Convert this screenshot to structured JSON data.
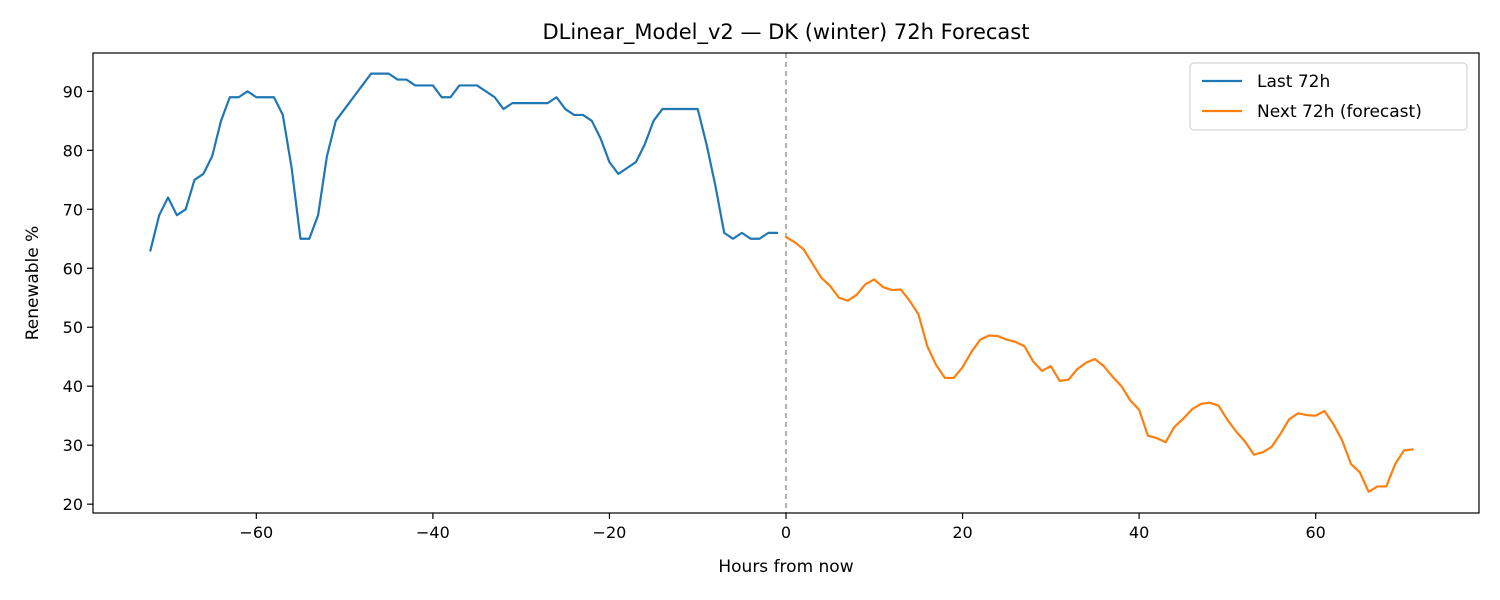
{
  "chart_data": {
    "type": "line",
    "title": "DLinear_Model_v2 — DK (winter) 72h Forecast",
    "xlabel": "Hours from now",
    "ylabel": "Renewable %",
    "xlim": [
      -78.5,
      78.5
    ],
    "ylim": [
      18.5,
      96.5
    ],
    "xticks": [
      -60,
      -40,
      -20,
      0,
      20,
      40,
      60
    ],
    "yticks": [
      20,
      30,
      40,
      50,
      60,
      70,
      80,
      90
    ],
    "grid": false,
    "legend_position": "top-right",
    "now_marker": {
      "x": 0,
      "style": "dashed",
      "color": "#999999"
    },
    "series": [
      {
        "name": "Last 72h",
        "color": "#1f77b4",
        "x": [
          -72,
          -71,
          -70,
          -69,
          -68,
          -67,
          -66,
          -65,
          -64,
          -63,
          -62,
          -61,
          -60,
          -59,
          -58,
          -57,
          -56,
          -55,
          -54,
          -53,
          -52,
          -51,
          -50,
          -49,
          -48,
          -47,
          -46,
          -45,
          -44,
          -43,
          -42,
          -41,
          -40,
          -39,
          -38,
          -37,
          -36,
          -35,
          -34,
          -33,
          -32,
          -31,
          -30,
          -29,
          -28,
          -27,
          -26,
          -25,
          -24,
          -23,
          -22,
          -21,
          -20,
          -19,
          -18,
          -17,
          -16,
          -15,
          -14,
          -13,
          -12,
          -11,
          -10,
          -9,
          -8,
          -7,
          -6,
          -5,
          -4,
          -3,
          -2,
          -1
        ],
        "values": [
          63,
          69,
          72,
          69,
          70,
          75,
          76,
          79,
          85,
          89,
          89,
          90,
          89,
          89,
          89,
          86,
          77,
          65,
          65,
          69,
          79,
          85,
          87,
          89,
          91,
          93,
          93,
          93,
          92,
          92,
          91,
          91,
          91,
          89,
          89,
          91,
          91,
          91,
          90,
          89,
          87,
          88,
          88,
          88,
          88,
          88,
          89,
          87,
          86,
          86,
          85,
          82,
          78,
          76,
          77,
          78,
          81,
          85,
          87,
          87,
          87,
          87,
          87,
          81,
          74,
          66,
          65,
          66,
          65,
          65,
          66,
          66
        ]
      },
      {
        "name": "Next 72h (forecast)",
        "color": "#ff7f0e",
        "x": [
          0,
          1,
          2,
          3,
          4,
          5,
          6,
          7,
          8,
          9,
          10,
          11,
          12,
          13,
          14,
          15,
          16,
          17,
          18,
          19,
          20,
          21,
          22,
          23,
          24,
          25,
          26,
          27,
          28,
          29,
          30,
          31,
          32,
          33,
          34,
          35,
          36,
          37,
          38,
          39,
          40,
          41,
          42,
          43,
          44,
          45,
          46,
          47,
          48,
          49,
          50,
          51,
          52,
          53,
          54,
          55,
          56,
          57,
          58,
          59,
          60,
          61,
          62,
          63,
          64,
          65,
          66,
          67,
          68,
          69,
          70,
          71
        ],
        "values": [
          65.3,
          64.4,
          63.2,
          60.8,
          58.4,
          57.0,
          55.0,
          54.5,
          55.5,
          57.3,
          58.1,
          56.8,
          56.3,
          56.4,
          54.5,
          52.2,
          46.8,
          43.6,
          41.4,
          41.4,
          43.2,
          45.8,
          47.9,
          48.6,
          48.5,
          47.9,
          47.5,
          46.8,
          44.2,
          42.6,
          43.4,
          40.9,
          41.1,
          42.9,
          44.0,
          44.6,
          43.4,
          41.6,
          40.0,
          37.6,
          36.0,
          31.6,
          31.2,
          30.5,
          33.1,
          34.5,
          36.1,
          37.0,
          37.2,
          36.7,
          34.3,
          32.3,
          30.6,
          28.4,
          28.8,
          29.7,
          31.9,
          34.4,
          35.4,
          35.1,
          35.0,
          35.8,
          33.6,
          30.8,
          26.8,
          25.4,
          22.1,
          23.0,
          23.0,
          26.8,
          29.1,
          29.3
        ]
      }
    ]
  }
}
